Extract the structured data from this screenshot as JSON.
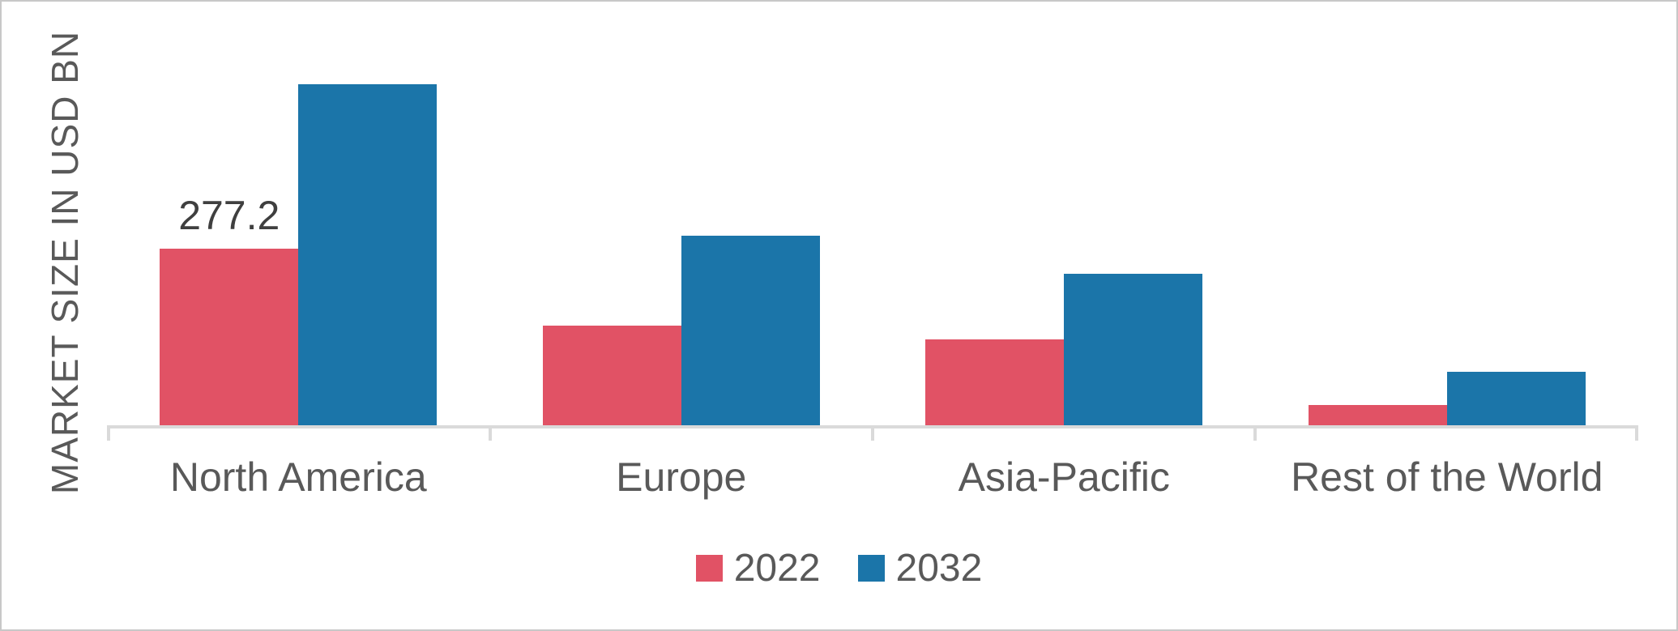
{
  "chart_data": {
    "type": "bar",
    "title": "",
    "ylabel": "MARKET SIZE IN USD BN",
    "xlabel": "",
    "categories": [
      "North America",
      "Europe",
      "Asia-Pacific",
      "Rest of the World"
    ],
    "series": [
      {
        "name": "2022",
        "color": "#e15265",
        "values": [
          277.2,
          156,
          135,
          32
        ]
      },
      {
        "name": "2032",
        "color": "#1b75a9",
        "values": [
          535,
          298,
          238,
          84
        ]
      }
    ],
    "data_label": {
      "series": "2022",
      "category": "North America",
      "text": "277.2"
    },
    "ylim": [
      0,
      560
    ],
    "grid": false,
    "legend_position": "bottom"
  },
  "colors": {
    "series_2022": "#e15265",
    "series_2032": "#1b75a9",
    "axis_line": "#dadada",
    "category_text": "#595959",
    "data_label_text": "#3f3f3f",
    "frame_border": "#c8c8c8",
    "background": "#ffffff"
  }
}
